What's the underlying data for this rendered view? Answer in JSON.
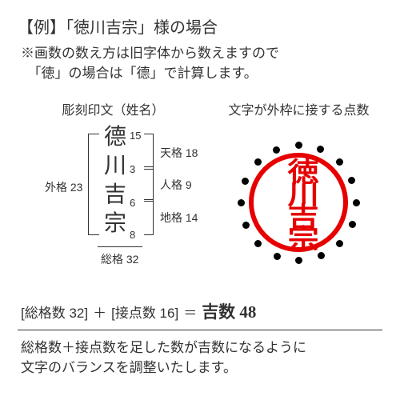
{
  "title": "【例】「徳川吉宗」様の場合",
  "note_line1": "※画数の数え方は旧字体から数えますので",
  "note_line2": "　「徳」の場合は「德」で計算します。",
  "left_heading": "彫刻印文（姓名）",
  "right_heading": "文字が外枠に接する点数",
  "characters": [
    "德",
    "川",
    "吉",
    "宗"
  ],
  "stroke_counts": [
    "15",
    "3",
    "6",
    "8"
  ],
  "gaikaku": {
    "label": "外格 23",
    "value": 23
  },
  "tenkaku": {
    "label": "天格 18",
    "value": 18
  },
  "jinkaku": {
    "label": "人格 9",
    "value": 9
  },
  "chikaku": {
    "label": "地格 14",
    "value": 14
  },
  "sokaku": {
    "label": "総格 32",
    "value": 32
  },
  "seal_chars": "徳川吉宗",
  "contact_points": 16,
  "formula": {
    "p1": "[総格数 32]",
    "plus": "＋",
    "p2": "[接点数 16]",
    "eq": "＝",
    "result": "吉数 48"
  },
  "footer_line1": "総格数＋接点数を足した数が吉数になるように",
  "footer_line2": "文字のバランスを調整いたします。",
  "colors": {
    "text": "#323232",
    "seal": "#e60000",
    "dot": "#000000",
    "bg": "#ffffff"
  },
  "dot_positions_deg": [
    270,
    292,
    315,
    337,
    0,
    22,
    45,
    67,
    90,
    112,
    135,
    157,
    180,
    202,
    225,
    247
  ]
}
